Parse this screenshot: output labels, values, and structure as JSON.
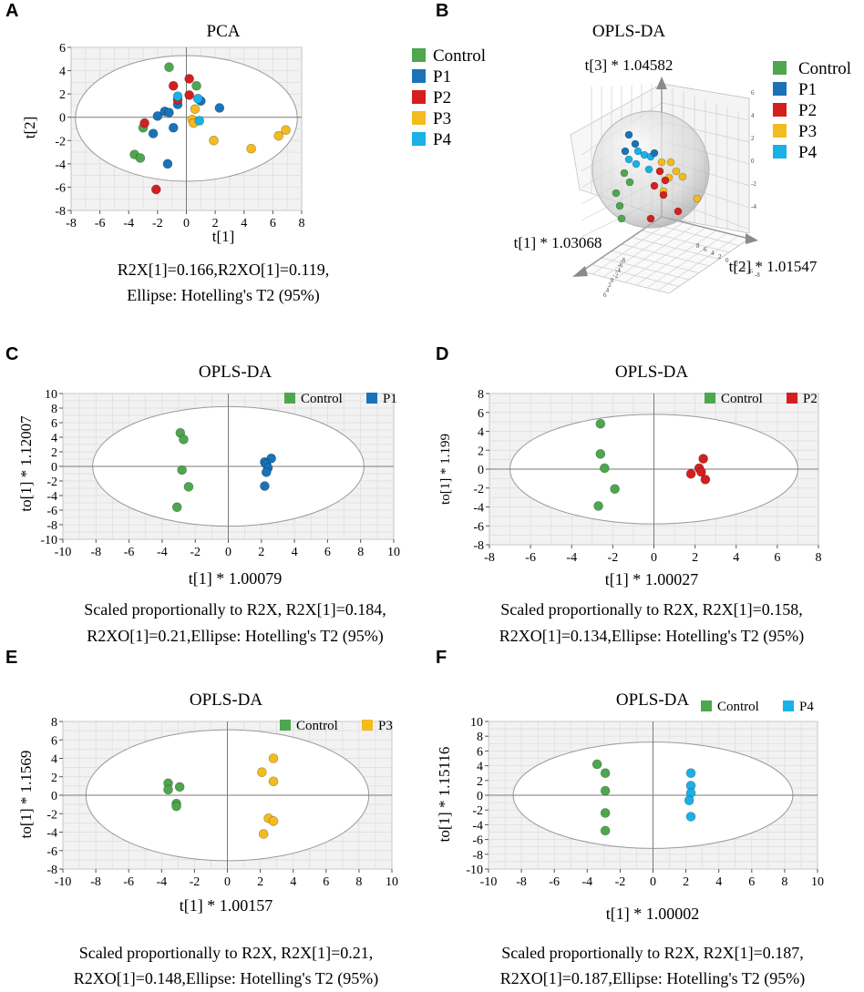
{
  "figure": {
    "colors": {
      "Control": "#4ea64e",
      "P1": "#1a73b8",
      "P2": "#d51f1f",
      "P3": "#f4bb1f",
      "P4": "#1bb0e8"
    }
  },
  "chart_data": [
    {
      "panel": "A",
      "type": "scatter",
      "title": "PCA",
      "xlabel": "t[1]",
      "ylabel": "t[2]",
      "xlim": [
        -8,
        8
      ],
      "ylim": [
        -8,
        6
      ],
      "xticks": [
        "-8",
        "-6",
        "-4",
        "-2",
        "0",
        "2",
        "4",
        "6",
        "8"
      ],
      "yticks": [
        "-8",
        "-6",
        "-4",
        "-2",
        "0",
        "2",
        "4",
        "6"
      ],
      "ellipse": {
        "cx": 0,
        "cy": -0.1,
        "rx": 7.7,
        "ry": 5.4
      },
      "caption": [
        "R2X[1]=0.166,R2XO[1]=0.119,",
        "Ellipse: Hotelling's T2 (95%)"
      ],
      "legend": [
        "Control",
        "P1",
        "P2",
        "P3",
        "P4"
      ],
      "series": [
        {
          "name": "Control",
          "points": [
            [
              -1.2,
              4.3
            ],
            [
              0.7,
              2.7
            ],
            [
              -3.0,
              -0.9
            ],
            [
              -3.6,
              -3.2
            ],
            [
              -3.2,
              -3.5
            ]
          ]
        },
        {
          "name": "P1",
          "points": [
            [
              -0.6,
              1.1
            ],
            [
              -2.0,
              0.1
            ],
            [
              -2.3,
              -1.4
            ],
            [
              -1.5,
              0.5
            ],
            [
              -1.2,
              0.4
            ],
            [
              -0.9,
              -0.9
            ],
            [
              -1.3,
              -4.0
            ],
            [
              1.0,
              1.4
            ],
            [
              2.3,
              0.8
            ]
          ]
        },
        {
          "name": "P2",
          "points": [
            [
              0.2,
              3.3
            ],
            [
              -0.9,
              2.7
            ],
            [
              0.2,
              1.9
            ],
            [
              -0.6,
              1.5
            ],
            [
              -2.9,
              -0.5
            ],
            [
              -2.1,
              -6.2
            ]
          ]
        },
        {
          "name": "P3",
          "points": [
            [
              0.6,
              0.7
            ],
            [
              0.4,
              -0.2
            ],
            [
              0.5,
              -0.5
            ],
            [
              1.9,
              -2.0
            ],
            [
              4.5,
              -2.7
            ],
            [
              6.4,
              -1.6
            ],
            [
              6.9,
              -1.1
            ]
          ]
        },
        {
          "name": "P4",
          "points": [
            [
              -0.6,
              1.8
            ],
            [
              0.8,
              1.6
            ],
            [
              0.9,
              -0.3
            ]
          ]
        }
      ]
    },
    {
      "panel": "B",
      "type": "scatter",
      "title": "OPLS-DA",
      "dimensions": "3d",
      "axis_labels": {
        "z": "t[3] * 1.04582",
        "x": "t[1] * 1.03068",
        "y": "t[2] * 1.01547"
      },
      "legend": [
        "Control",
        "P1",
        "P2",
        "P3",
        "P4"
      ],
      "z_ticks": [
        "6",
        "4",
        "2",
        "0",
        "-2",
        "-4"
      ],
      "y_ticks": [
        "8",
        "6",
        "4",
        "2",
        "0",
        "-2",
        "-4",
        "-6",
        "-8"
      ],
      "x_ticks": [
        "6",
        "4",
        "2",
        "0",
        "-2",
        "-4",
        "-6",
        "-8"
      ]
    },
    {
      "panel": "C",
      "type": "scatter",
      "title": "OPLS-DA",
      "xlabel": "t[1] * 1.00079",
      "ylabel": "to[1] * 1.12007",
      "xlim": [
        -10,
        10
      ],
      "ylim": [
        -10,
        10
      ],
      "xticks": [
        "-10",
        "-8",
        "-6",
        "-4",
        "-2",
        "0",
        "2",
        "4",
        "6",
        "8",
        "10"
      ],
      "yticks": [
        "-10",
        "-8",
        "-6",
        "-4",
        "-2",
        "0",
        "2",
        "4",
        "6",
        "8",
        "10"
      ],
      "ellipse": {
        "cx": 0,
        "cy": 0,
        "rx": 8.2,
        "ry": 8.2
      },
      "caption": [
        "Scaled proportionally to R2X, R2X[1]=0.184,",
        "R2XO[1]=0.21,Ellipse: Hotelling's T2 (95%)"
      ],
      "legend": [
        "Control",
        "P1"
      ],
      "series": [
        {
          "name": "Control",
          "points": [
            [
              -2.9,
              4.6
            ],
            [
              -2.7,
              3.7
            ],
            [
              -2.8,
              -0.5
            ],
            [
              -2.4,
              -2.8
            ],
            [
              -3.1,
              -5.6
            ]
          ]
        },
        {
          "name": "P1",
          "points": [
            [
              2.6,
              1.1
            ],
            [
              2.2,
              0.6
            ],
            [
              2.3,
              0.3
            ],
            [
              2.4,
              -0.2
            ],
            [
              2.3,
              -0.8
            ],
            [
              2.2,
              -2.7
            ]
          ]
        }
      ]
    },
    {
      "panel": "D",
      "type": "scatter",
      "title": "OPLS-DA",
      "xlabel": "t[1] * 1.00027",
      "ylabel": "to[1] * 1.199",
      "xlim": [
        -8,
        8
      ],
      "ylim": [
        -8,
        8
      ],
      "xticks": [
        "-8",
        "-6",
        "-4",
        "-2",
        "0",
        "2",
        "4",
        "6",
        "8"
      ],
      "yticks": [
        "-8",
        "-6",
        "-4",
        "-2",
        "0",
        "2",
        "4",
        "6",
        "8"
      ],
      "ellipse": {
        "cx": 0,
        "cy": 0,
        "rx": 7.0,
        "ry": 5.8
      },
      "caption": [
        "Scaled proportionally to R2X, R2X[1]=0.158,",
        "R2XO[1]=0.134,Ellipse: Hotelling's T2 (95%)"
      ],
      "legend": [
        "Control",
        "P2"
      ],
      "series": [
        {
          "name": "Control",
          "points": [
            [
              -2.6,
              4.8
            ],
            [
              -2.6,
              1.6
            ],
            [
              -2.4,
              0.1
            ],
            [
              -1.9,
              -2.1
            ],
            [
              -2.7,
              -3.9
            ]
          ]
        },
        {
          "name": "P2",
          "points": [
            [
              2.4,
              1.1
            ],
            [
              2.2,
              0.1
            ],
            [
              1.8,
              -0.5
            ],
            [
              2.5,
              -1.1
            ],
            [
              2.3,
              -0.3
            ]
          ]
        }
      ]
    },
    {
      "panel": "E",
      "type": "scatter",
      "title": "OPLS-DA",
      "xlabel": "t[1] * 1.00157",
      "ylabel": "to[1] * 1.1569",
      "xlim": [
        -10,
        10
      ],
      "ylim": [
        -8,
        8
      ],
      "xticks": [
        "-10",
        "-8",
        "-6",
        "-4",
        "-2",
        "0",
        "2",
        "4",
        "6",
        "8",
        "10"
      ],
      "yticks": [
        "-8",
        "-6",
        "-4",
        "-2",
        "0",
        "2",
        "4",
        "6",
        "8"
      ],
      "ellipse": {
        "cx": 0,
        "cy": 0,
        "rx": 8.6,
        "ry": 7.1
      },
      "caption": [
        "Scaled proportionally to R2X, R2X[1]=0.21,",
        "R2XO[1]=0.148,Ellipse: Hotelling's T2 (95%)"
      ],
      "legend": [
        "Control",
        "P3"
      ],
      "series": [
        {
          "name": "Control",
          "points": [
            [
              -3.6,
              1.3
            ],
            [
              -2.9,
              0.9
            ],
            [
              -3.6,
              0.6
            ],
            [
              -3.1,
              -0.9
            ],
            [
              -3.1,
              -1.2
            ]
          ]
        },
        {
          "name": "P3",
          "points": [
            [
              2.8,
              4.0
            ],
            [
              2.1,
              2.5
            ],
            [
              2.8,
              1.5
            ],
            [
              2.5,
              -2.5
            ],
            [
              2.8,
              -2.8
            ],
            [
              2.2,
              -4.2
            ]
          ]
        }
      ]
    },
    {
      "panel": "F",
      "type": "scatter",
      "title": "OPLS-DA",
      "xlabel": "t[1] * 1.00002",
      "ylabel": "to[1] * 1.15116",
      "xlim": [
        -10,
        10
      ],
      "ylim": [
        -10,
        10
      ],
      "xticks": [
        "-10",
        "-8",
        "-6",
        "-4",
        "-2",
        "0",
        "2",
        "4",
        "6",
        "8",
        "10"
      ],
      "yticks": [
        "-10",
        "-8",
        "-6",
        "-4",
        "-2",
        "0",
        "2",
        "4",
        "6",
        "8",
        "10"
      ],
      "ellipse": {
        "cx": 0,
        "cy": 0,
        "rx": 8.5,
        "ry": 7.2
      },
      "caption": [
        "Scaled proportionally to R2X, R2X[1]=0.187,",
        "R2XO[1]=0.187,Ellipse: Hotelling's T2 (95%)"
      ],
      "legend": [
        "Control",
        "P4"
      ],
      "series": [
        {
          "name": "Control",
          "points": [
            [
              -3.4,
              4.2
            ],
            [
              -2.9,
              3.0
            ],
            [
              -2.9,
              0.6
            ],
            [
              -2.9,
              -2.4
            ],
            [
              -2.9,
              -4.8
            ]
          ]
        },
        {
          "name": "P4",
          "points": [
            [
              2.3,
              3.0
            ],
            [
              2.3,
              1.3
            ],
            [
              2.3,
              0.3
            ],
            [
              2.2,
              -0.7
            ],
            [
              2.3,
              -2.9
            ]
          ]
        }
      ]
    }
  ]
}
